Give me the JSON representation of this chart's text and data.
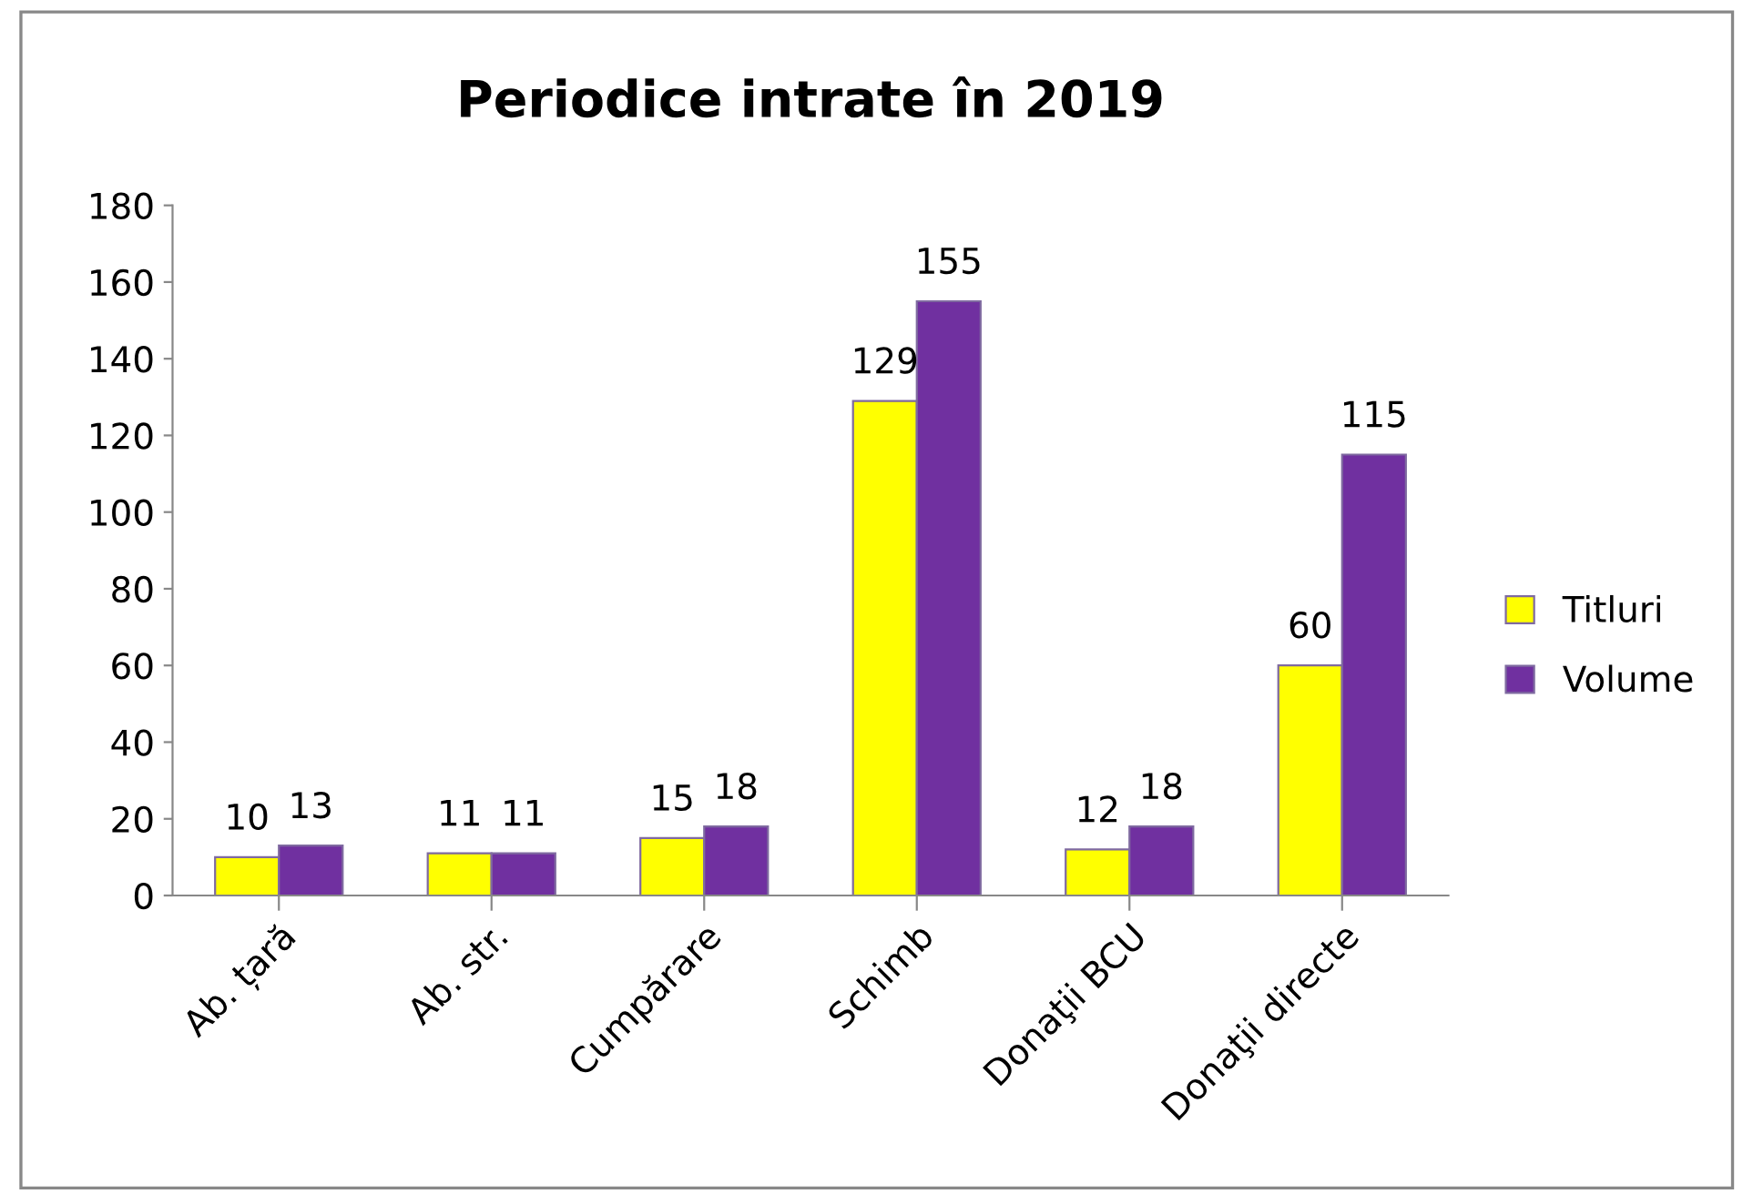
{
  "chart_data": {
    "type": "bar",
    "title": "Periodice intrate în 2019",
    "categories": [
      "Ab. țară",
      "Ab. str.",
      "Cumpărare",
      "Schimb",
      "Donaţii BCU",
      "Donaţii directe"
    ],
    "series": [
      {
        "name": "Titluri",
        "color": "#ffff00",
        "values": [
          10,
          11,
          15,
          129,
          12,
          60
        ]
      },
      {
        "name": "Volume",
        "color": "#7030a0",
        "values": [
          13,
          11,
          18,
          155,
          18,
          115
        ]
      }
    ],
    "ylim": [
      0,
      180
    ],
    "yticks": [
      0,
      20,
      40,
      60,
      80,
      100,
      120,
      140,
      160,
      180
    ],
    "grid": false,
    "legend": "right",
    "data_labels": true
  }
}
